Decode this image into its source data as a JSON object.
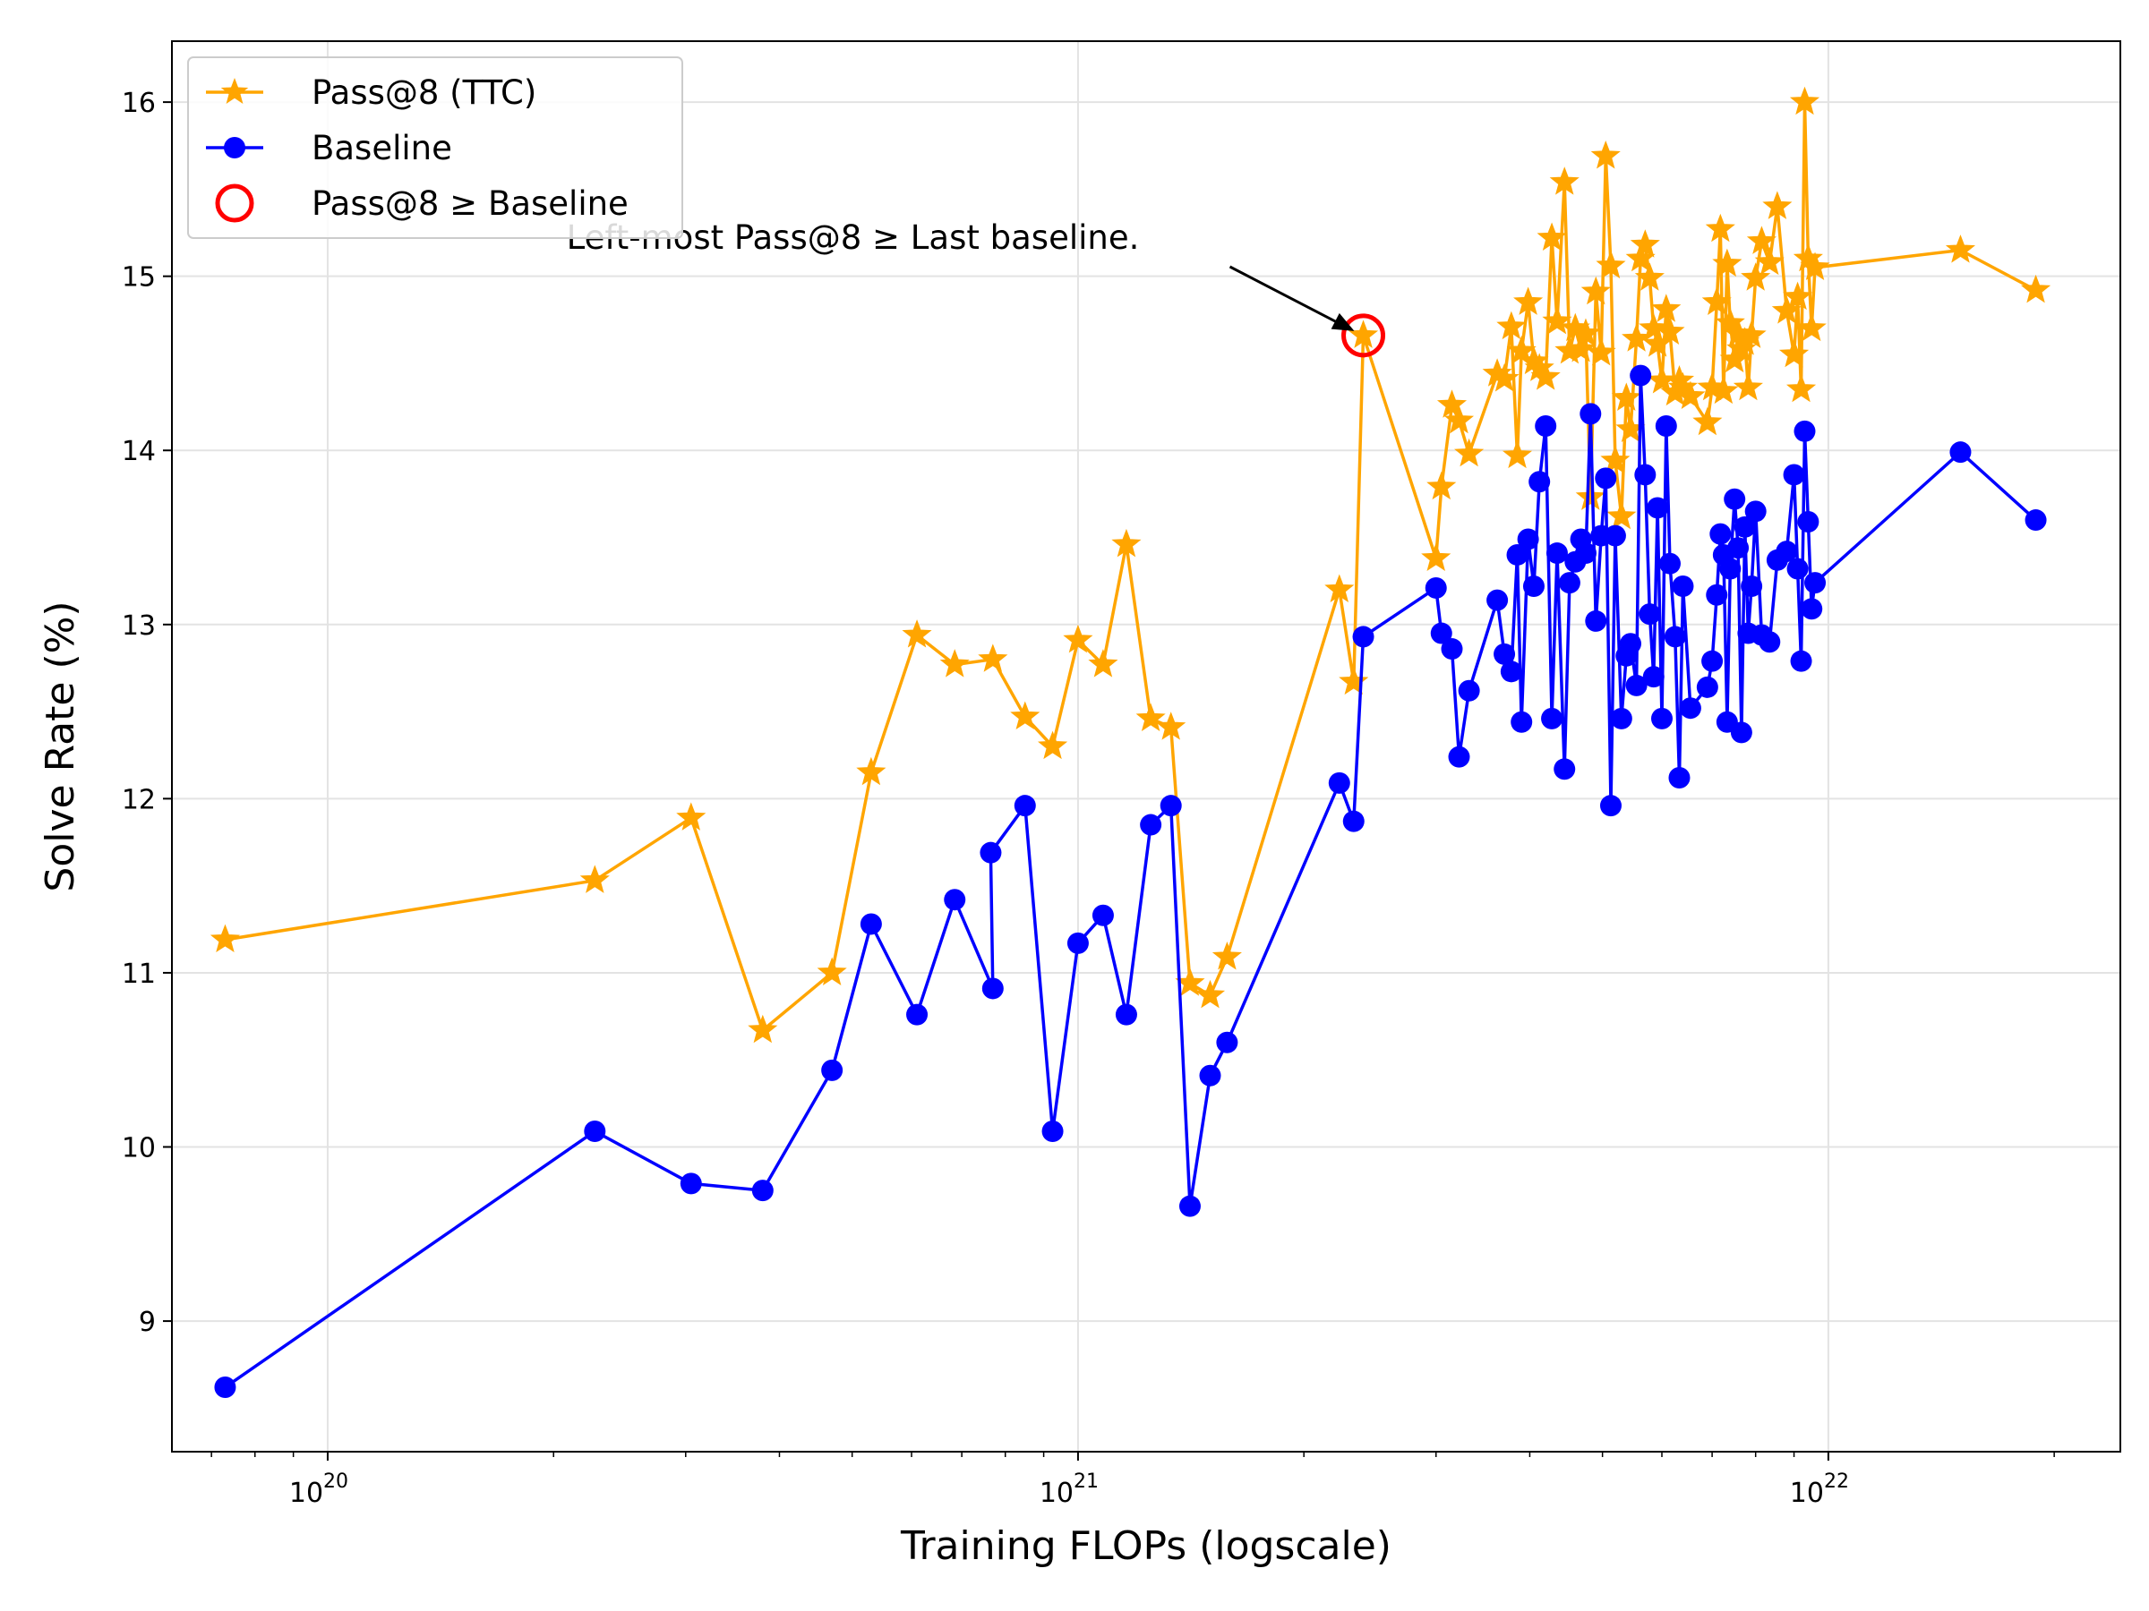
{
  "chart_data": {
    "type": "line",
    "title": "",
    "xlabel": "Training FLOPs (logscale)",
    "ylabel": "Solve Rate (%)",
    "xscale": "log",
    "xlim": [
      6.2e+19,
      2.45e+22
    ],
    "ylim": [
      8.25,
      16.35
    ],
    "grid": true,
    "legend_position": "top-left",
    "x_ticks": [
      {
        "value": 1e+20,
        "base": "10",
        "exp": "20"
      },
      {
        "value": 1e+21,
        "base": "10",
        "exp": "21"
      },
      {
        "value": 1e+22,
        "base": "10",
        "exp": "22"
      }
    ],
    "y_ticks": [
      {
        "value": 9,
        "label": "9"
      },
      {
        "value": 10,
        "label": "10"
      },
      {
        "value": 11,
        "label": "11"
      },
      {
        "value": 12,
        "label": "12"
      },
      {
        "value": 13,
        "label": "13"
      },
      {
        "value": 14,
        "label": "14"
      },
      {
        "value": 15,
        "label": "15"
      },
      {
        "value": 16,
        "label": "16"
      }
    ],
    "series": [
      {
        "name": "Baseline",
        "color": "#0000ff",
        "marker": "circle",
        "points": [
          [
            7.3e+19,
            8.62
          ],
          [
            2.27e+20,
            10.09
          ],
          [
            3.05e+20,
            9.79
          ],
          [
            3.8e+20,
            9.75
          ],
          [
            4.7e+20,
            10.44
          ],
          [
            5.3e+20,
            11.28
          ],
          [
            6.1e+20,
            10.76
          ],
          [
            6.85e+20,
            11.42
          ],
          [
            7.7e+20,
            10.91
          ],
          [
            7.65e+20,
            11.69
          ],
          [
            8.5e+20,
            11.96
          ],
          [
            9.25e+20,
            10.09
          ],
          [
            1e+21,
            11.17
          ],
          [
            1.08e+21,
            11.33
          ],
          [
            1.16e+21,
            10.76
          ],
          [
            1.25e+21,
            11.85
          ],
          [
            1.33e+21,
            11.96
          ],
          [
            1.41e+21,
            9.66
          ],
          [
            1.5e+21,
            10.41
          ],
          [
            1.58e+21,
            10.6
          ],
          [
            2.23e+21,
            12.09
          ],
          [
            2.33e+21,
            11.87
          ],
          [
            2.4e+21,
            12.93
          ],
          [
            3e+21,
            13.21
          ],
          [
            3.05e+21,
            12.95
          ],
          [
            3.15e+21,
            12.86
          ],
          [
            3.22e+21,
            12.24
          ],
          [
            3.32e+21,
            12.62
          ],
          [
            3.62e+21,
            13.14
          ],
          [
            3.7e+21,
            12.83
          ],
          [
            3.78e+21,
            12.73
          ],
          [
            3.85e+21,
            13.4
          ],
          [
            3.9e+21,
            12.44
          ],
          [
            3.98e+21,
            13.49
          ],
          [
            4.05e+21,
            13.22
          ],
          [
            4.12e+21,
            13.82
          ],
          [
            4.2e+21,
            14.14
          ],
          [
            4.28e+21,
            12.46
          ],
          [
            4.35e+21,
            13.41
          ],
          [
            4.45e+21,
            12.17
          ],
          [
            4.52e+21,
            13.24
          ],
          [
            4.6e+21,
            13.36
          ],
          [
            4.68e+21,
            13.49
          ],
          [
            4.75e+21,
            13.41
          ],
          [
            4.82e+21,
            14.21
          ],
          [
            4.9e+21,
            13.02
          ],
          [
            4.98e+21,
            13.51
          ],
          [
            5.05e+21,
            13.84
          ],
          [
            5.13e+21,
            11.96
          ],
          [
            5.2e+21,
            13.51
          ],
          [
            5.3e+21,
            12.46
          ],
          [
            5.38e+21,
            12.82
          ],
          [
            5.45e+21,
            12.89
          ],
          [
            5.55e+21,
            12.65
          ],
          [
            5.62e+21,
            14.43
          ],
          [
            5.7e+21,
            13.86
          ],
          [
            5.78e+21,
            13.06
          ],
          [
            5.85e+21,
            12.7
          ],
          [
            5.92e+21,
            13.67
          ],
          [
            6e+21,
            12.46
          ],
          [
            6.08e+21,
            14.14
          ],
          [
            6.15e+21,
            13.35
          ],
          [
            6.25e+21,
            12.93
          ],
          [
            6.33e+21,
            12.12
          ],
          [
            6.4e+21,
            13.22
          ],
          [
            6.55e+21,
            12.52
          ],
          [
            6.9e+21,
            12.64
          ],
          [
            7e+21,
            12.79
          ],
          [
            7.1e+21,
            13.17
          ],
          [
            7.18e+21,
            13.52
          ],
          [
            7.25e+21,
            13.4
          ],
          [
            7.33e+21,
            12.44
          ],
          [
            7.4e+21,
            13.32
          ],
          [
            7.5e+21,
            13.72
          ],
          [
            7.58e+21,
            13.44
          ],
          [
            7.66e+21,
            12.38
          ],
          [
            7.74e+21,
            13.56
          ],
          [
            7.82e+21,
            12.95
          ],
          [
            7.9e+21,
            13.22
          ],
          [
            8e+21,
            13.65
          ],
          [
            8.15e+21,
            12.94
          ],
          [
            8.35e+21,
            12.9
          ],
          [
            8.55e+21,
            13.37
          ],
          [
            8.8e+21,
            13.42
          ],
          [
            9e+21,
            13.86
          ],
          [
            9.1e+21,
            13.32
          ],
          [
            9.2e+21,
            12.79
          ],
          [
            9.3e+21,
            14.11
          ],
          [
            9.4e+21,
            13.59
          ],
          [
            9.5e+21,
            13.09
          ],
          [
            9.6e+21,
            13.24
          ],
          [
            1.5e+22,
            13.99
          ],
          [
            1.89e+22,
            13.6
          ]
        ]
      },
      {
        "name": "Pass@8 (TTC)",
        "color": "#ffa500",
        "marker": "star",
        "points": [
          [
            7.3e+19,
            11.19
          ],
          [
            2.27e+20,
            11.53
          ],
          [
            3.05e+20,
            11.89
          ],
          [
            3.8e+20,
            10.67
          ],
          [
            4.7e+20,
            11.0
          ],
          [
            5.3e+20,
            12.15
          ],
          [
            6.1e+20,
            12.94
          ],
          [
            6.85e+20,
            12.77
          ],
          [
            7.7e+20,
            12.8
          ],
          [
            8.5e+20,
            12.47
          ],
          [
            9.25e+20,
            12.3
          ],
          [
            1e+21,
            12.91
          ],
          [
            1.08e+21,
            12.77
          ],
          [
            1.16e+21,
            13.46
          ],
          [
            1.25e+21,
            12.46
          ],
          [
            1.33e+21,
            12.41
          ],
          [
            1.41e+21,
            10.94
          ],
          [
            1.5e+21,
            10.87
          ],
          [
            1.58e+21,
            11.09
          ],
          [
            2.23e+21,
            13.2
          ],
          [
            2.33e+21,
            12.67
          ],
          [
            2.4e+21,
            14.66
          ],
          [
            3e+21,
            13.38
          ],
          [
            3.05e+21,
            13.79
          ],
          [
            3.15e+21,
            14.26
          ],
          [
            3.22e+21,
            14.17
          ],
          [
            3.32e+21,
            13.98
          ],
          [
            3.62e+21,
            14.44
          ],
          [
            3.7e+21,
            14.41
          ],
          [
            3.78e+21,
            14.71
          ],
          [
            3.85e+21,
            13.97
          ],
          [
            3.9e+21,
            14.57
          ],
          [
            3.98e+21,
            14.85
          ],
          [
            4.05e+21,
            14.51
          ],
          [
            4.12e+21,
            14.47
          ],
          [
            4.2e+21,
            14.42
          ],
          [
            4.28e+21,
            15.22
          ],
          [
            4.35e+21,
            14.74
          ],
          [
            4.45e+21,
            15.54
          ],
          [
            4.52e+21,
            14.57
          ],
          [
            4.6e+21,
            14.7
          ],
          [
            4.68e+21,
            14.58
          ],
          [
            4.75e+21,
            14.67
          ],
          [
            4.82e+21,
            13.73
          ],
          [
            4.9e+21,
            14.91
          ],
          [
            4.98e+21,
            14.56
          ],
          [
            5.05e+21,
            15.69
          ],
          [
            5.13e+21,
            15.06
          ],
          [
            5.2e+21,
            13.94
          ],
          [
            5.3e+21,
            13.62
          ],
          [
            5.38e+21,
            14.3
          ],
          [
            5.45e+21,
            14.12
          ],
          [
            5.55e+21,
            14.64
          ],
          [
            5.62e+21,
            15.1
          ],
          [
            5.7e+21,
            15.18
          ],
          [
            5.78e+21,
            14.99
          ],
          [
            5.85e+21,
            14.7
          ],
          [
            5.92e+21,
            14.61
          ],
          [
            6e+21,
            14.4
          ],
          [
            6.08e+21,
            14.81
          ],
          [
            6.15e+21,
            14.68
          ],
          [
            6.25e+21,
            14.33
          ],
          [
            6.33e+21,
            14.4
          ],
          [
            6.4e+21,
            14.36
          ],
          [
            6.55e+21,
            14.31
          ],
          [
            6.9e+21,
            14.16
          ],
          [
            7e+21,
            14.36
          ],
          [
            7.1e+21,
            14.85
          ],
          [
            7.18e+21,
            15.27
          ],
          [
            7.25e+21,
            14.34
          ],
          [
            7.33e+21,
            15.07
          ],
          [
            7.4e+21,
            14.73
          ],
          [
            7.5e+21,
            14.52
          ],
          [
            7.58e+21,
            14.67
          ],
          [
            7.66e+21,
            14.58
          ],
          [
            7.74e+21,
            14.62
          ],
          [
            7.82e+21,
            14.36
          ],
          [
            7.9e+21,
            14.66
          ],
          [
            8e+21,
            14.99
          ],
          [
            8.15e+21,
            15.2
          ],
          [
            8.35e+21,
            15.08
          ],
          [
            8.55e+21,
            15.4
          ],
          [
            8.8e+21,
            14.8
          ],
          [
            9e+21,
            14.55
          ],
          [
            9.1e+21,
            14.88
          ],
          [
            9.2e+21,
            14.35
          ],
          [
            9.3e+21,
            16.0
          ],
          [
            9.4e+21,
            15.1
          ],
          [
            9.5e+21,
            14.7
          ],
          [
            9.6e+21,
            15.05
          ],
          [
            1.5e+22,
            15.15
          ],
          [
            1.89e+22,
            14.92
          ]
        ]
      }
    ],
    "highlight": {
      "name": "Pass@8 ≥ Baseline",
      "color": "#ff0000",
      "marker": "open-circle",
      "x": 2.4e+21,
      "y": 14.66
    },
    "annotation": {
      "text": "Left-most Pass@8 ≥ Last baseline.",
      "x": 2.4e+21,
      "y": 14.66
    },
    "legend": [
      {
        "label": "Pass@8 (TTC)",
        "color": "#ffa500",
        "marker": "star"
      },
      {
        "label": "Baseline",
        "color": "#0000ff",
        "marker": "circle"
      },
      {
        "label": "Pass@8 ≥ Baseline",
        "color": "#ff0000",
        "marker": "open-circle"
      }
    ]
  }
}
